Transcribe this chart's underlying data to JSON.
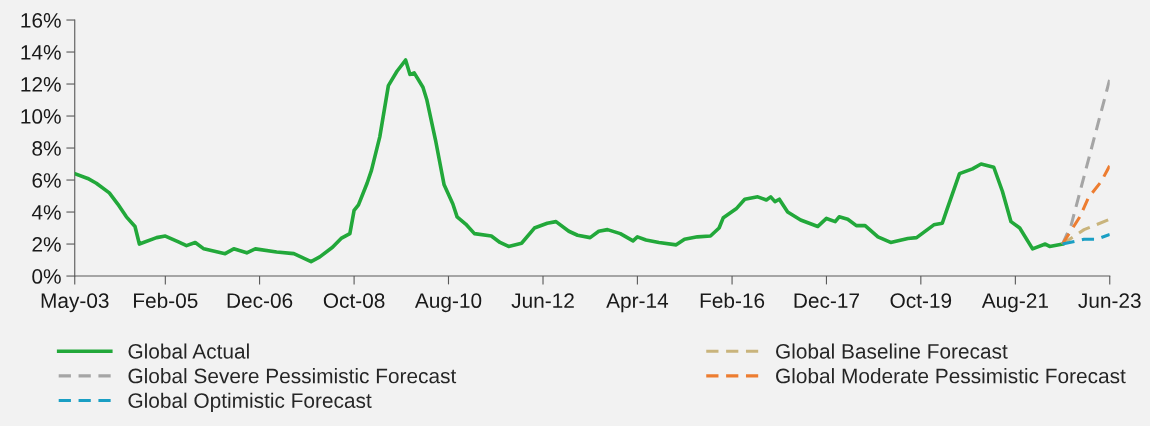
{
  "chart_data": {
    "type": "line",
    "legend": "bottom",
    "grid": false,
    "marker": "none",
    "xlim": [
      "2003-05",
      "2023-06"
    ],
    "xticks": [
      {
        "value": "2003-05",
        "label": "May-03"
      },
      {
        "value": "2005-02",
        "label": "Feb-05"
      },
      {
        "value": "2006-12",
        "label": "Dec-06"
      },
      {
        "value": "2008-10",
        "label": "Oct-08"
      },
      {
        "value": "2010-08",
        "label": "Aug-10"
      },
      {
        "value": "2012-06",
        "label": "Jun-12"
      },
      {
        "value": "2014-04",
        "label": "Apr-14"
      },
      {
        "value": "2016-02",
        "label": "Feb-16"
      },
      {
        "value": "2017-12",
        "label": "Dec-17"
      },
      {
        "value": "2019-10",
        "label": "Oct-19"
      },
      {
        "value": "2021-08",
        "label": "Aug-21"
      },
      {
        "value": "2023-06",
        "label": "Jun-23"
      }
    ],
    "ylim": [
      0,
      16
    ],
    "yticks": [
      {
        "value": 0,
        "label": "0%"
      },
      {
        "value": 2,
        "label": "2%"
      },
      {
        "value": 4,
        "label": "4%"
      },
      {
        "value": 6,
        "label": "6%"
      },
      {
        "value": 8,
        "label": "8%"
      },
      {
        "value": 10,
        "label": "10%"
      },
      {
        "value": 12,
        "label": "12%"
      },
      {
        "value": 14,
        "label": "14%"
      },
      {
        "value": 16,
        "label": "16%"
      }
    ],
    "series": [
      {
        "name": "Global Actual",
        "color": "#22a83a",
        "line_style": "solid",
        "x": [
          "2003-05",
          "2003-08",
          "2003-10",
          "2004-01",
          "2004-03",
          "2004-05",
          "2004-07",
          "2004-08",
          "2004-12",
          "2005-02",
          "2005-05",
          "2005-07",
          "2005-09",
          "2005-11",
          "2006-04",
          "2006-06",
          "2006-09",
          "2006-11",
          "2007-04",
          "2007-08",
          "2007-12",
          "2008-02",
          "2008-05",
          "2008-07",
          "2008-09",
          "2008-10",
          "2008-11",
          "2009-01",
          "2009-02",
          "2009-04",
          "2009-06",
          "2009-08",
          "2009-10",
          "2009-11",
          "2009-12",
          "2010-02",
          "2010-03",
          "2010-05",
          "2010-07",
          "2010-09",
          "2010-10",
          "2010-12",
          "2011-02",
          "2011-06",
          "2011-08",
          "2011-10",
          "2012-01",
          "2012-04",
          "2012-07",
          "2012-09",
          "2012-12",
          "2013-02",
          "2013-05",
          "2013-07",
          "2013-09",
          "2013-12",
          "2014-03",
          "2014-04",
          "2014-06",
          "2014-09",
          "2015-01",
          "2015-03",
          "2015-06",
          "2015-09",
          "2015-11",
          "2015-12",
          "2016-03",
          "2016-05",
          "2016-08",
          "2016-10",
          "2016-11",
          "2016-12",
          "2017-01",
          "2017-03",
          "2017-06",
          "2017-10",
          "2017-12",
          "2018-02",
          "2018-03",
          "2018-05",
          "2018-07",
          "2018-09",
          "2018-12",
          "2019-03",
          "2019-07",
          "2019-09",
          "2020-01",
          "2020-03",
          "2020-04",
          "2020-07",
          "2020-10",
          "2020-12",
          "2021-03",
          "2021-05",
          "2021-07",
          "2021-09",
          "2021-12",
          "2022-03",
          "2022-04",
          "2022-07"
        ],
        "values": [
          6.4,
          6.1,
          5.8,
          5.2,
          4.5,
          3.7,
          3.1,
          2.0,
          2.4,
          2.5,
          2.15,
          1.9,
          2.1,
          1.7,
          1.4,
          1.7,
          1.45,
          1.7,
          1.5,
          1.4,
          0.9,
          1.2,
          1.8,
          2.35,
          2.65,
          4.1,
          4.45,
          5.8,
          6.6,
          8.7,
          11.9,
          12.8,
          13.5,
          12.6,
          12.7,
          11.8,
          11.0,
          8.5,
          5.7,
          4.5,
          3.7,
          3.25,
          2.65,
          2.5,
          2.1,
          1.85,
          2.05,
          3.0,
          3.3,
          3.4,
          2.8,
          2.55,
          2.4,
          2.8,
          2.9,
          2.65,
          2.2,
          2.45,
          2.25,
          2.1,
          1.95,
          2.3,
          2.45,
          2.5,
          3.0,
          3.65,
          4.2,
          4.8,
          4.95,
          4.75,
          4.95,
          4.65,
          4.8,
          4.0,
          3.5,
          3.1,
          3.6,
          3.4,
          3.7,
          3.55,
          3.15,
          3.15,
          2.45,
          2.1,
          2.35,
          2.4,
          3.2,
          3.3,
          4.1,
          6.4,
          6.7,
          7.0,
          6.8,
          5.3,
          3.4,
          3.0,
          1.7,
          2.0,
          1.85,
          2.0
        ]
      },
      {
        "name": "Global Baseline Forecast",
        "color": "#c9b47c",
        "line_style": "dashed",
        "x": [
          "2022-07",
          "2022-12",
          "2023-06"
        ],
        "values": [
          2.0,
          2.9,
          3.55
        ]
      },
      {
        "name": "Global Severe Pessimistic Forecast",
        "color": "#a5a5a5",
        "line_style": "dashed",
        "x": [
          "2022-07",
          "2022-09",
          "2023-06"
        ],
        "values": [
          2.0,
          3.2,
          12.3
        ]
      },
      {
        "name": "Global Moderate Pessimistic Forecast",
        "color": "#ed7d31",
        "line_style": "dashed",
        "x": [
          "2022-07",
          "2022-11",
          "2023-01",
          "2023-04",
          "2023-06"
        ],
        "values": [
          2.0,
          3.7,
          4.9,
          5.9,
          6.9
        ]
      },
      {
        "name": "Global Optimistic Forecast",
        "color": "#1a9fc4",
        "line_style": "dashed",
        "x": [
          "2022-07",
          "2022-12",
          "2023-03",
          "2023-06"
        ],
        "values": [
          2.0,
          2.3,
          2.3,
          2.6
        ]
      }
    ]
  }
}
